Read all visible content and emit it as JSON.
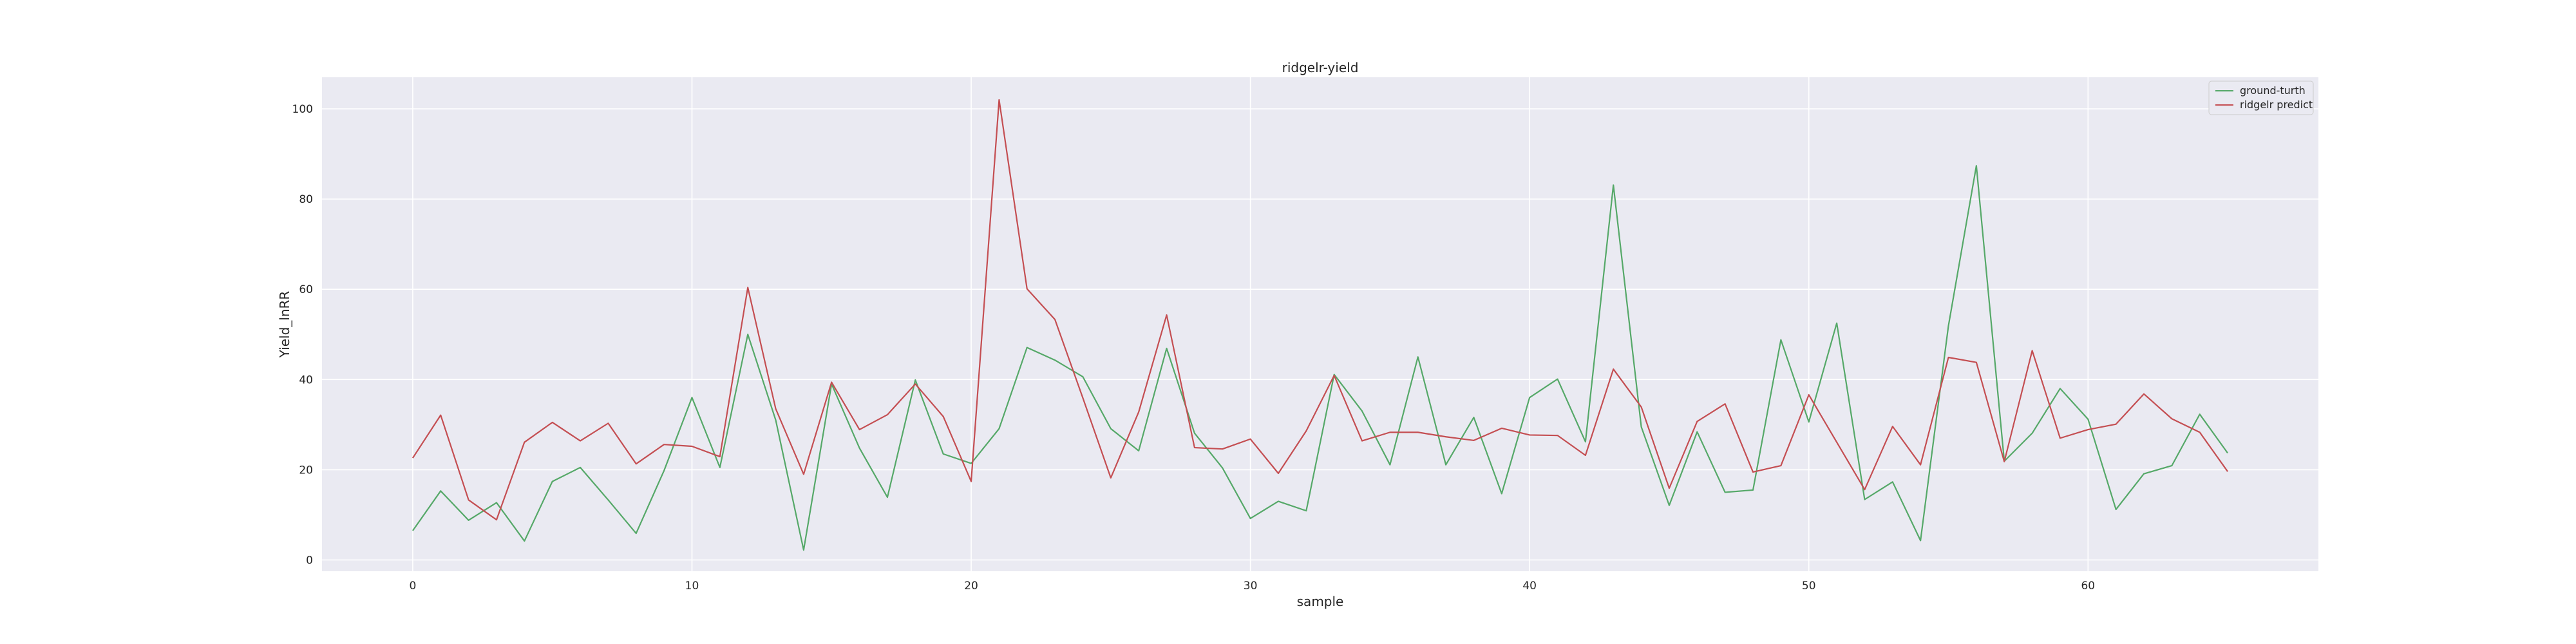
{
  "chart_data": {
    "type": "line",
    "title": "ridgelr-yield",
    "xlabel": "sample",
    "ylabel": "Yield_lnRR",
    "xlim": [
      -3.25,
      68.25
    ],
    "ylim": [
      -2.5,
      107
    ],
    "xticks": [
      0,
      10,
      20,
      30,
      40,
      50,
      60
    ],
    "yticks": [
      0,
      20,
      40,
      60,
      80,
      100
    ],
    "grid": true,
    "legend_position": "top-right",
    "x": [
      0,
      1,
      2,
      3,
      4,
      5,
      6,
      7,
      8,
      9,
      10,
      11,
      12,
      13,
      14,
      15,
      16,
      17,
      18,
      19,
      20,
      21,
      22,
      23,
      24,
      25,
      26,
      27,
      28,
      29,
      30,
      31,
      32,
      33,
      34,
      35,
      36,
      37,
      38,
      39,
      40,
      41,
      42,
      43,
      44,
      45,
      46,
      47,
      48,
      49,
      50,
      51,
      52,
      53,
      54,
      55,
      56,
      57,
      58,
      59,
      60,
      61,
      62,
      63,
      64,
      65
    ],
    "series": [
      {
        "name": "ground-turth",
        "color": "#55a868",
        "values": [
          6.5,
          15.3,
          8.8,
          12.7,
          4.2,
          17.4,
          20.5,
          13.3,
          5.9,
          19.8,
          36.0,
          20.5,
          50.0,
          31.0,
          2.2,
          39.0,
          24.8,
          13.9,
          39.9,
          23.5,
          21.4,
          29.1,
          47.1,
          44.3,
          40.6,
          29.1,
          24.2,
          46.9,
          28.1,
          20.4,
          9.2,
          13.0,
          10.9,
          41.1,
          33.0,
          21.1,
          45.0,
          21.1,
          31.6,
          14.7,
          36.0,
          40.1,
          26.2,
          83.1,
          29.5,
          12.1,
          28.4,
          15.0,
          15.5,
          48.8,
          30.6,
          52.5,
          13.4,
          17.3,
          4.3,
          51.9,
          87.4,
          21.9,
          28.1,
          38.0,
          31.2,
          11.2,
          19.1,
          20.9,
          32.3,
          23.7
        ]
      },
      {
        "name": "ridgelr predict",
        "color": "#c44e52",
        "values": [
          22.6,
          32.1,
          13.3,
          8.9,
          26.1,
          30.5,
          26.4,
          30.3,
          21.3,
          25.6,
          25.2,
          22.9,
          60.4,
          33.5,
          19.0,
          39.4,
          28.9,
          32.2,
          39.0,
          31.8,
          17.4,
          102.0,
          60.1,
          53.3,
          35.9,
          18.2,
          32.8,
          54.3,
          24.9,
          24.6,
          26.8,
          19.2,
          28.6,
          40.9,
          26.4,
          28.3,
          28.3,
          27.3,
          26.5,
          29.2,
          27.7,
          27.6,
          23.2,
          42.3,
          33.9,
          15.9,
          30.7,
          34.6,
          19.5,
          20.9,
          36.6,
          26.1,
          15.6,
          29.6,
          21.1,
          44.9,
          43.8,
          21.8,
          46.4,
          27.0,
          28.9,
          30.1,
          36.8,
          31.3,
          28.3,
          19.6
        ]
      }
    ]
  }
}
